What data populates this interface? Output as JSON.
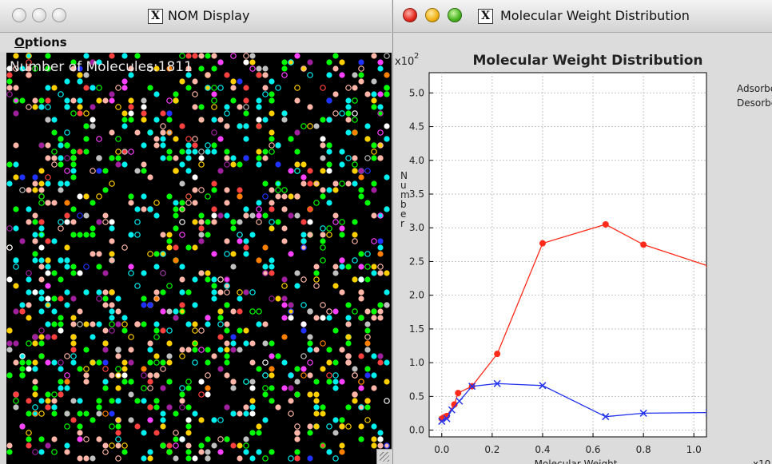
{
  "nom_window": {
    "title": "NOM Display",
    "menu_options": "Options",
    "molecule_count_text": "Number of Molecules:1811"
  },
  "mw_window": {
    "title": "Molecular Weight Distribution",
    "y_exponent": "x10",
    "y_exponent_power": "2",
    "x_exponent": "x10"
  },
  "chart_data": {
    "type": "line",
    "title": "Molecular Weight Distribution",
    "xlabel": "Molecular Weight",
    "ylabel": "Number",
    "x_scale_note": "x10",
    "y_scale_note": "x10^2",
    "xlim": [
      -0.05,
      1.05
    ],
    "ylim": [
      -0.1,
      5.3
    ],
    "x_ticks": [
      "0.0",
      "0.2",
      "0.4",
      "0.6",
      "0.8",
      "1.0"
    ],
    "y_ticks": [
      "0.0",
      "0.5",
      "1.0",
      "1.5",
      "2.0",
      "2.5",
      "3.0",
      "3.5",
      "4.0",
      "4.5",
      "5.0"
    ],
    "grid": true,
    "legend_position": "right",
    "series": [
      {
        "name": "Adsorbed",
        "color": "#ff2a1a",
        "marker": "circle",
        "x": [
          0.0,
          0.01,
          0.02,
          0.05,
          0.065,
          0.12,
          0.22,
          0.4,
          0.65,
          0.8,
          1.06
        ],
        "y": [
          0.17,
          0.19,
          0.21,
          0.38,
          0.55,
          0.65,
          1.13,
          2.77,
          3.05,
          2.75,
          2.43
        ]
      },
      {
        "name": "Desorbed",
        "color": "#2233ee",
        "marker": "x",
        "x": [
          0.0,
          0.02,
          0.04,
          0.07,
          0.12,
          0.22,
          0.4,
          0.65,
          0.8,
          1.06
        ],
        "y": [
          0.13,
          0.17,
          0.3,
          0.43,
          0.65,
          0.69,
          0.66,
          0.2,
          0.25,
          0.26
        ]
      }
    ]
  },
  "particles": {
    "colors": [
      "#00ff00",
      "#00f0f0",
      "#ffb6a8",
      "#ffd000",
      "#ff4040",
      "#ff40ff",
      "#c0c0c0",
      "#ffffff",
      "#2030ff",
      "#a020a0",
      "#ff8000"
    ]
  }
}
